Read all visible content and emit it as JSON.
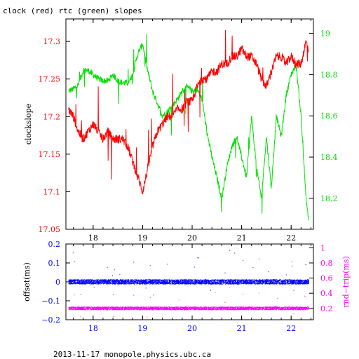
{
  "title": "clock (red) rtc (green) slopes",
  "footer": "2013-11-17 monopole.physics.ubc.ca",
  "colors": {
    "clock": "#ff0000",
    "rtc": "#00e000",
    "offset": "#0000ff",
    "rndtrip": "#ff00ff",
    "axis": "#000000"
  },
  "chart_data": [
    {
      "type": "line",
      "ylabel_left": "clockslope",
      "ylabel_right": "",
      "xlim": [
        17.45,
        22.45
      ],
      "ylim_left": [
        17.05,
        17.33
      ],
      "ylim_right": [
        18.05,
        19.07
      ],
      "x_ticks": [
        "18",
        "19",
        "20",
        "21",
        "22"
      ],
      "y_left_ticks": [
        "17.05",
        "17.1",
        "17.15",
        "17.2",
        "17.25",
        "17.3"
      ],
      "y_right_ticks": [
        "18.2",
        "18.4",
        "18.6",
        "18.8",
        "19"
      ],
      "series": [
        {
          "name": "clock",
          "axis": "left",
          "x": [
            17.5,
            17.6,
            17.7,
            17.8,
            17.9,
            18.0,
            18.1,
            18.2,
            18.3,
            18.4,
            18.5,
            18.6,
            18.7,
            18.8,
            18.9,
            19.0,
            19.1,
            19.2,
            19.3,
            19.4,
            19.5,
            19.6,
            19.7,
            19.8,
            19.9,
            20.0,
            20.1,
            20.2,
            20.3,
            20.4,
            20.5,
            20.6,
            20.7,
            20.8,
            20.9,
            21.0,
            21.1,
            21.2,
            21.3,
            21.4,
            21.5,
            21.6,
            21.7,
            21.8,
            21.9,
            22.0,
            22.1,
            22.2,
            22.3,
            22.35
          ],
          "y": [
            17.21,
            17.2,
            17.18,
            17.17,
            17.18,
            17.19,
            17.18,
            17.17,
            17.18,
            17.17,
            17.17,
            17.17,
            17.16,
            17.14,
            17.12,
            17.1,
            17.13,
            17.16,
            17.18,
            17.19,
            17.2,
            17.2,
            17.21,
            17.21,
            17.22,
            17.22,
            17.24,
            17.25,
            17.25,
            17.26,
            17.26,
            17.27,
            17.27,
            17.28,
            17.28,
            17.29,
            17.28,
            17.28,
            17.27,
            17.25,
            17.24,
            17.26,
            17.28,
            17.28,
            17.27,
            17.28,
            17.27,
            17.27,
            17.3,
            17.29
          ]
        },
        {
          "name": "rtc",
          "axis": "right",
          "x": [
            17.5,
            17.6,
            17.7,
            17.8,
            17.9,
            18.0,
            18.1,
            18.2,
            18.3,
            18.4,
            18.5,
            18.6,
            18.7,
            18.8,
            18.9,
            19.0,
            19.1,
            19.2,
            19.3,
            19.4,
            19.5,
            19.6,
            19.7,
            19.8,
            19.9,
            20.0,
            20.1,
            20.2,
            20.3,
            20.4,
            20.5,
            20.6,
            20.7,
            20.8,
            20.9,
            21.0,
            21.1,
            21.2,
            21.3,
            21.4,
            21.5,
            21.6,
            21.7,
            21.8,
            21.9,
            22.0,
            22.1,
            22.2,
            22.3,
            22.35
          ],
          "y": [
            18.72,
            18.73,
            18.75,
            18.82,
            18.82,
            18.8,
            18.78,
            18.77,
            18.77,
            18.8,
            18.77,
            18.76,
            18.76,
            18.8,
            18.9,
            18.95,
            18.82,
            18.72,
            18.66,
            18.6,
            18.62,
            18.65,
            18.68,
            18.72,
            18.74,
            18.72,
            18.73,
            18.68,
            18.52,
            18.4,
            18.3,
            18.2,
            18.35,
            18.45,
            18.5,
            18.4,
            18.3,
            18.6,
            18.35,
            18.2,
            18.5,
            18.25,
            18.6,
            18.5,
            18.7,
            18.8,
            18.85,
            18.6,
            18.2,
            18.1
          ]
        }
      ]
    },
    {
      "type": "scatter",
      "ylabel_left": "offset(ms)",
      "ylabel_right": "rnd−trip(ms)",
      "xlim": [
        17.45,
        22.45
      ],
      "ylim_left": [
        -0.2,
        0.2
      ],
      "ylim_right": [
        0.05,
        1.05
      ],
      "x_ticks": [
        "18",
        "19",
        "20",
        "21",
        "22"
      ],
      "y_left_ticks": [
        "−0.2",
        "−0.1",
        "0",
        "0.1",
        "0.2"
      ],
      "y_right_ticks": [
        "0.2",
        "0.4",
        "0.6",
        "0.8",
        "1"
      ],
      "series": [
        {
          "name": "offset",
          "axis": "left",
          "y_center": 0.0,
          "spread": 0.012
        },
        {
          "name": "rnd-trip",
          "axis": "right",
          "y_center": 0.2,
          "spread": 0.02
        }
      ]
    }
  ]
}
